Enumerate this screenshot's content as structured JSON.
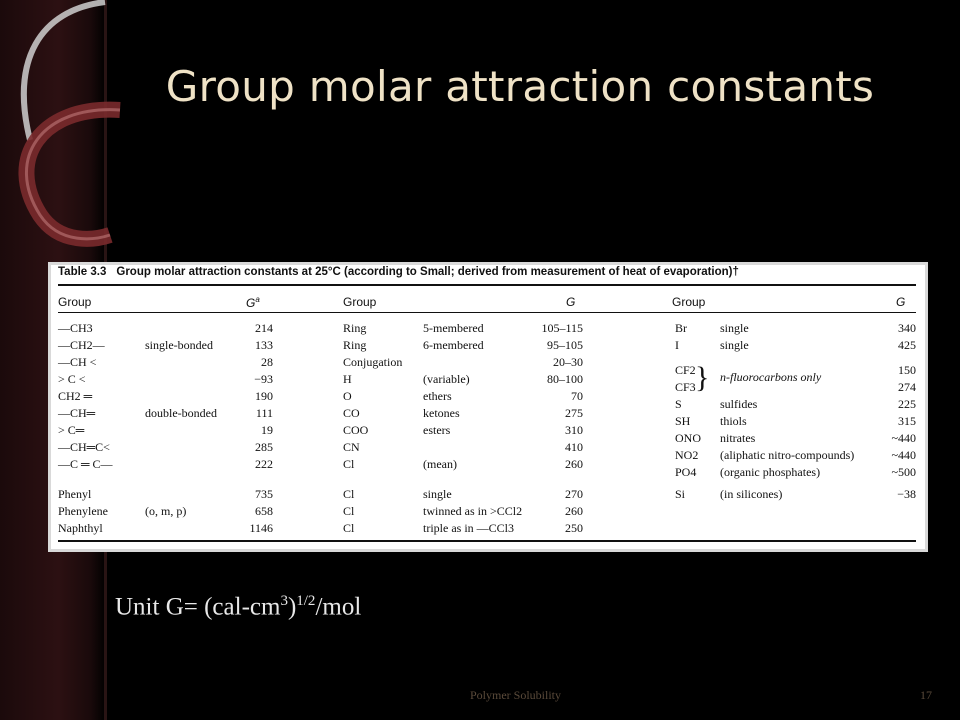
{
  "slide": {
    "title": "Group molar attraction constants",
    "unit_text": {
      "prefix": "Unit G= (cal-cm",
      "sup1": "3",
      "mid": ")",
      "sup2": "1/2",
      "suffix": "/mol"
    },
    "footer": {
      "center": "Polymer Solubility",
      "page": "17"
    },
    "colors": {
      "title": "#efe2c6",
      "background": "#000000",
      "accent_dark": "#4a1a1c",
      "accent_light": "#c9c9c9"
    }
  },
  "table": {
    "number": "Table 3.3",
    "caption": "Group molar attraction constants at 25°C (according to Small; derived from measurement of heat of evaporation)†",
    "headers": {
      "group1": "Group",
      "g1": "G",
      "g1_sup": "a",
      "group2": "Group",
      "g2": "G",
      "group3": "Group",
      "g3": "G"
    },
    "col1": [
      {
        "group": "—CH3",
        "note": "",
        "g": "214"
      },
      {
        "group": "—CH2—",
        "note": "single-bonded",
        "g": "133"
      },
      {
        "group": "—CH <",
        "note": "",
        "g": "28"
      },
      {
        "group": "> C <",
        "note": "",
        "g": "−93"
      },
      {
        "group": "CH2 ═",
        "note": "",
        "g": "190"
      },
      {
        "group": "—CH═",
        "note": "double-bonded",
        "g": "111"
      },
      {
        "group": "> C═",
        "note": "",
        "g": "19"
      },
      {
        "group": "—CH═C<",
        "note": "",
        "g": "285"
      },
      {
        "group": "—C ═ C—",
        "note": "",
        "g": "222"
      },
      {
        "group": "Phenyl",
        "note": "",
        "g": "735"
      },
      {
        "group": "Phenylene",
        "note": "(o, m, p)",
        "g": "658"
      },
      {
        "group": "Naphthyl",
        "note": "",
        "g": "1146"
      }
    ],
    "col2": [
      {
        "group": "Ring",
        "note": "5-membered",
        "g": "105–115"
      },
      {
        "group": "Ring",
        "note": "6-membered",
        "g": "95–105"
      },
      {
        "group": "Conjugation",
        "note": "",
        "g": "20–30"
      },
      {
        "group": "H",
        "note": "(variable)",
        "g": "80–100"
      },
      {
        "group": "O",
        "note": "ethers",
        "g": "70"
      },
      {
        "group": "CO",
        "note": "ketones",
        "g": "275"
      },
      {
        "group": "COO",
        "note": "esters",
        "g": "310"
      },
      {
        "group": "CN",
        "note": "",
        "g": "410"
      },
      {
        "group": "Cl",
        "note": "(mean)",
        "g": "260"
      },
      {
        "group": "Cl",
        "note": "single",
        "g": "270"
      },
      {
        "group": "Cl",
        "note": "twinned as in >CCl2",
        "g": "260"
      },
      {
        "group": "Cl",
        "note": "triple as in —CCl3",
        "g": "250"
      }
    ],
    "col3": [
      {
        "group": "Br",
        "note": "single",
        "g": "340"
      },
      {
        "group": "I",
        "note": "single",
        "g": "425"
      },
      {
        "group": "CF2",
        "note": "",
        "g": "150"
      },
      {
        "group": "CF3",
        "note": "",
        "g": "274"
      },
      {
        "group": "S",
        "note": "sulfides",
        "g": "225"
      },
      {
        "group": "SH",
        "note": "thiols",
        "g": "315"
      },
      {
        "group": "ONO",
        "note": "nitrates",
        "g": "~440"
      },
      {
        "group": "NO2",
        "note": "(aliphatic nitro-compounds)",
        "g": "~440"
      },
      {
        "group": "PO4",
        "note": "(organic phosphates)",
        "g": "~500"
      },
      {
        "group": "Si",
        "note": "(in silicones)",
        "g": "−38"
      }
    ],
    "cf_note": "n-fluorocarbons only"
  }
}
